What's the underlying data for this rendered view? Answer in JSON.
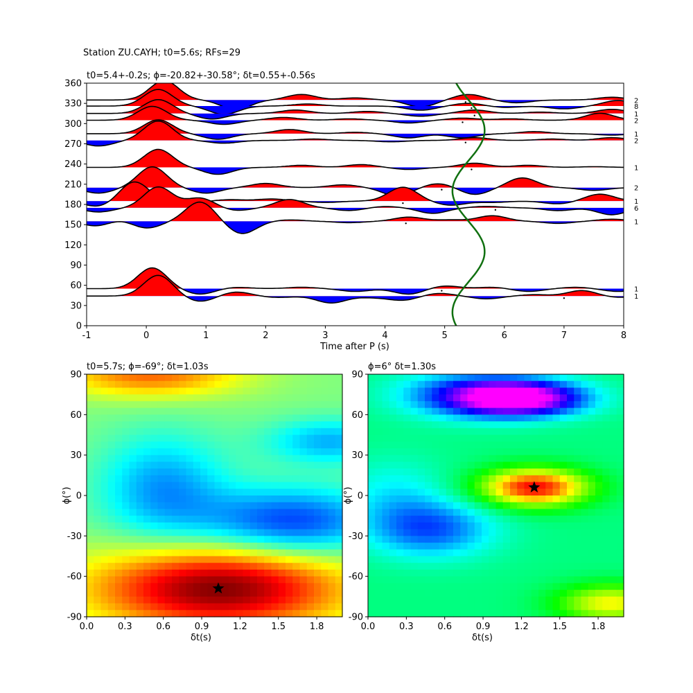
{
  "figure": {
    "suptitle": "Station ZU.CAYH; t0=5.6s; RFs=29"
  },
  "colors": {
    "positive_fill": "#ff0000",
    "negative_fill": "#0000ff",
    "trace_line": "#000000",
    "curve": "#107010",
    "star": "#000000"
  },
  "chart_data": [
    {
      "type": "line",
      "panel": "receiver-functions",
      "title": "t0=5.4+-0.2s; ϕ=-20.82+-30.58°; δt=0.55+-0.56s",
      "xlabel": "Time after P (s)",
      "ylabel": "",
      "xlim": [
        -1,
        8
      ],
      "ylim": [
        0,
        360
      ],
      "xticks": [
        "-1",
        "0",
        "1",
        "2",
        "3",
        "4",
        "5",
        "6",
        "7",
        "8"
      ],
      "yticks": [
        "0",
        "30",
        "60",
        "90",
        "120",
        "150",
        "180",
        "210",
        "240",
        "270",
        "300",
        "330",
        "360"
      ],
      "traces": [
        {
          "baz": 335,
          "count": "2",
          "wave": [
            [
              0.3,
              28
            ],
            [
              1.5,
              -14
            ],
            [
              2.6,
              8
            ],
            [
              3.5,
              3
            ],
            [
              4.6,
              -10
            ],
            [
              5.4,
              8
            ],
            [
              6.2,
              -4
            ],
            [
              7.8,
              4
            ]
          ]
        },
        {
          "baz": 326,
          "count": "8",
          "wave": [
            [
              0.2,
              24
            ],
            [
              1.3,
              -12
            ],
            [
              2.7,
              3
            ],
            [
              3.6,
              0
            ],
            [
              4.6,
              -6
            ],
            [
              5.4,
              4
            ],
            [
              6.0,
              -2
            ],
            [
              7.0,
              -4
            ],
            [
              7.9,
              8
            ]
          ]
        },
        {
          "baz": 315,
          "count": "1",
          "wave": [
            [
              0.2,
              20
            ],
            [
              1.1,
              -8
            ],
            [
              2.5,
              5
            ],
            [
              3.7,
              3
            ],
            [
              4.6,
              -4
            ],
            [
              5.5,
              5
            ],
            [
              6.6,
              2
            ],
            [
              7.8,
              6
            ]
          ]
        },
        {
          "baz": 305,
          "count": "2",
          "wave": [
            [
              0.1,
              20
            ],
            [
              1.3,
              -6
            ],
            [
              2.3,
              4
            ],
            [
              3.4,
              2
            ],
            [
              4.4,
              -4
            ],
            [
              5.3,
              3
            ],
            [
              6.1,
              2
            ],
            [
              7.6,
              10
            ]
          ]
        },
        {
          "baz": 285,
          "count": "1",
          "wave": [
            [
              0.2,
              20
            ],
            [
              1.2,
              -8
            ],
            [
              2.4,
              6
            ],
            [
              3.5,
              2
            ],
            [
              4.4,
              -6
            ],
            [
              5.3,
              -6
            ],
            [
              6.5,
              3
            ],
            [
              7.8,
              -2
            ]
          ]
        },
        {
          "baz": 275,
          "count": "2",
          "wave": [
            [
              -0.8,
              -8
            ],
            [
              0.2,
              28
            ],
            [
              1.3,
              -4
            ],
            [
              2.8,
              2
            ],
            [
              4.1,
              -2
            ],
            [
              5.5,
              4
            ],
            [
              6.8,
              2
            ],
            [
              7.8,
              4
            ]
          ]
        },
        {
          "baz": 235,
          "count": "1",
          "wave": [
            [
              0.2,
              26
            ],
            [
              1.2,
              -10
            ],
            [
              2.6,
              3
            ],
            [
              3.6,
              4
            ],
            [
              4.4,
              -3
            ],
            [
              5.5,
              6
            ],
            [
              6.4,
              3
            ],
            [
              7.5,
              1
            ]
          ]
        },
        {
          "baz": 205,
          "count": "2",
          "wave": [
            [
              -0.8,
              -8
            ],
            [
              0.1,
              30
            ],
            [
              1.0,
              -8
            ],
            [
              2.0,
              6
            ],
            [
              3.3,
              4
            ],
            [
              4.2,
              -12
            ],
            [
              4.9,
              6
            ],
            [
              5.5,
              -10
            ],
            [
              6.3,
              14
            ],
            [
              7.5,
              -4
            ]
          ]
        },
        {
          "baz": 185,
          "count": "1",
          "wave": [
            [
              -0.8,
              -8
            ],
            [
              -0.2,
              28
            ],
            [
              0.6,
              -6
            ],
            [
              1.4,
              2
            ],
            [
              2.1,
              3
            ],
            [
              3.0,
              -2
            ],
            [
              4.3,
              20
            ],
            [
              5.1,
              -6
            ],
            [
              5.8,
              -2
            ],
            [
              6.9,
              -4
            ],
            [
              7.6,
              10
            ]
          ]
        },
        {
          "baz": 175,
          "count": "6",
          "wave": [
            [
              -0.8,
              -6
            ],
            [
              0.2,
              30
            ],
            [
              0.9,
              14
            ],
            [
              1.5,
              -4
            ],
            [
              2.4,
              12
            ],
            [
              3.4,
              -4
            ],
            [
              4.0,
              2
            ],
            [
              4.8,
              -8
            ],
            [
              5.7,
              2
            ],
            [
              6.9,
              -4
            ],
            [
              7.8,
              -10
            ]
          ]
        },
        {
          "baz": 155,
          "count": "1",
          "wave": [
            [
              -0.8,
              -8
            ],
            [
              -0.5,
              4
            ],
            [
              0.0,
              -10
            ],
            [
              0.9,
              28
            ],
            [
              1.6,
              -18
            ],
            [
              2.4,
              2
            ],
            [
              3.4,
              -2
            ],
            [
              4.4,
              6
            ],
            [
              5.1,
              2
            ],
            [
              5.8,
              8
            ],
            [
              6.9,
              -3
            ],
            [
              7.8,
              3
            ]
          ]
        },
        {
          "baz": 55,
          "count": "1",
          "wave": [
            [
              0.1,
              30
            ],
            [
              0.9,
              -8
            ],
            [
              1.5,
              2
            ],
            [
              2.6,
              2
            ],
            [
              3.5,
              -4
            ],
            [
              4.4,
              -8
            ],
            [
              5.0,
              4
            ],
            [
              5.8,
              2
            ],
            [
              6.4,
              -4
            ],
            [
              7.2,
              2
            ],
            [
              7.9,
              -4
            ]
          ]
        },
        {
          "baz": 44,
          "count": "1",
          "wave": [
            [
              0.2,
              30
            ],
            [
              0.9,
              -8
            ],
            [
              1.5,
              6
            ],
            [
              2.2,
              -2
            ],
            [
              3.1,
              -10
            ],
            [
              3.8,
              -2
            ],
            [
              4.3,
              -6
            ],
            [
              4.9,
              4
            ],
            [
              5.7,
              -4
            ],
            [
              6.5,
              2
            ],
            [
              7.3,
              8
            ],
            [
              7.9,
              -2
            ]
          ]
        }
      ],
      "markers": [
        [
          5.35,
          335
        ],
        [
          5.45,
          326
        ],
        [
          5.5,
          315
        ],
        [
          5.3,
          305
        ],
        [
          5.35,
          275
        ],
        [
          5.45,
          235
        ],
        [
          4.95,
          205
        ],
        [
          4.3,
          185
        ],
        [
          5.85,
          175
        ],
        [
          4.35,
          155
        ],
        [
          4.95,
          55
        ],
        [
          7.0,
          44
        ]
      ],
      "curve": {
        "label": "",
        "amplitude_s": 0.27,
        "center_s": 5.4,
        "period_deg": 180,
        "phase_deg": -65
      }
    },
    {
      "type": "heatmap",
      "panel": "left-grid",
      "title": "t0=5.7s; ϕ=-69°; δt=1.03s",
      "xlabel": "δt(s)",
      "ylabel": "ϕ(°)",
      "xlim": [
        0.0,
        2.0
      ],
      "ylim": [
        -90,
        90
      ],
      "xticks": [
        "0.0",
        "0.3",
        "0.6",
        "0.9",
        "1.2",
        "1.5",
        "1.8"
      ],
      "yticks": [
        "-90",
        "-60",
        "-30",
        "0",
        "30",
        "60",
        "90"
      ],
      "colormap": "jet",
      "best": {
        "dt": 1.03,
        "phi": -69
      },
      "blobs": [
        {
          "dt": 1.03,
          "phi": -69,
          "sdt": 0.7,
          "sphi": 22,
          "amp": 1.0
        },
        {
          "dt": 0.5,
          "phi": 90,
          "sdt": 0.5,
          "sphi": 12,
          "amp": 0.55
        },
        {
          "dt": 1.6,
          "phi": -20,
          "sdt": 0.5,
          "sphi": 18,
          "amp": -0.65
        },
        {
          "dt": 0.6,
          "phi": 5,
          "sdt": 0.35,
          "sphi": 28,
          "amp": -0.45
        },
        {
          "dt": 1.9,
          "phi": 40,
          "sdt": 0.35,
          "sphi": 12,
          "amp": -0.4
        }
      ]
    },
    {
      "type": "heatmap",
      "panel": "right-grid",
      "title": "ϕ=6° δt=1.30s",
      "xlabel": "δt(s)",
      "ylabel": "ϕ(°)",
      "xlim": [
        0.0,
        2.0
      ],
      "ylim": [
        -90,
        90
      ],
      "xticks": [
        "0.0",
        "0.3",
        "0.6",
        "0.9",
        "1.2",
        "1.5",
        "1.8"
      ],
      "yticks": [
        "-90",
        "-60",
        "-30",
        "0",
        "30",
        "60",
        "90"
      ],
      "colormap": "hsv-like",
      "best": {
        "dt": 1.3,
        "phi": 6
      },
      "blobs": [
        {
          "dt": 1.3,
          "phi": 6,
          "sdt": 0.3,
          "sphi": 10,
          "amp": 1.0
        },
        {
          "dt": 1.2,
          "phi": 72,
          "sdt": 0.35,
          "sphi": 9,
          "amp": -1.0
        },
        {
          "dt": 0.8,
          "phi": 75,
          "sdt": 0.4,
          "sphi": 12,
          "amp": -0.5
        },
        {
          "dt": 0.5,
          "phi": -25,
          "sdt": 0.35,
          "sphi": 15,
          "amp": -0.45
        },
        {
          "dt": 1.9,
          "phi": -80,
          "sdt": 0.3,
          "sphi": 10,
          "amp": 0.6
        },
        {
          "dt": 0.2,
          "phi": 0,
          "sdt": 0.3,
          "sphi": 20,
          "amp": -0.2
        }
      ]
    }
  ]
}
